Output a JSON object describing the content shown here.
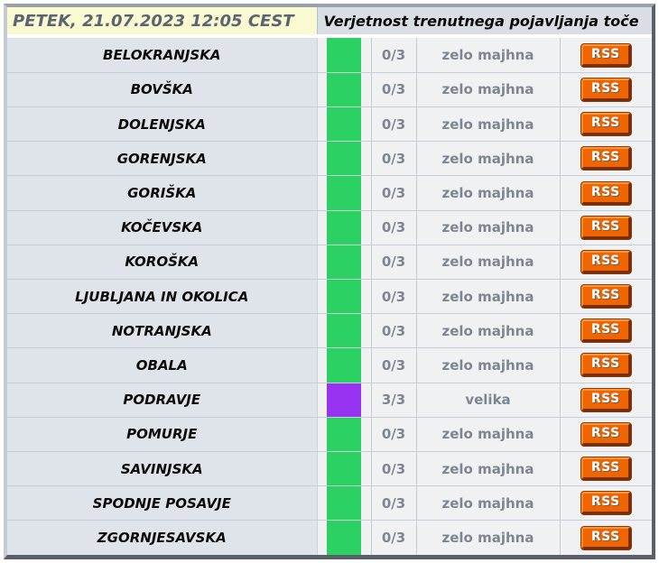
{
  "header": {
    "date": "PETEK, 21.07.2023 12:05 CEST",
    "title": "Verjetnost trenutnega pojavljanja toče"
  },
  "colors": {
    "green": "#2bd163",
    "purple": "#9833f2",
    "rss_orange": "#ef6502",
    "header_yellow": "#fafad2",
    "region_cell": "#dfe4eb"
  },
  "rss_label": "RSS",
  "rows": [
    {
      "region": "BELOKRANJSKA",
      "score": "0/3",
      "probability": "zelo majhna",
      "level": "green"
    },
    {
      "region": "BOVŠKA",
      "score": "0/3",
      "probability": "zelo majhna",
      "level": "green"
    },
    {
      "region": "DOLENJSKA",
      "score": "0/3",
      "probability": "zelo majhna",
      "level": "green"
    },
    {
      "region": "GORENJSKA",
      "score": "0/3",
      "probability": "zelo majhna",
      "level": "green"
    },
    {
      "region": "GORIŠKA",
      "score": "0/3",
      "probability": "zelo majhna",
      "level": "green"
    },
    {
      "region": "KOČEVSKA",
      "score": "0/3",
      "probability": "zelo majhna",
      "level": "green"
    },
    {
      "region": "KOROŠKA",
      "score": "0/3",
      "probability": "zelo majhna",
      "level": "green"
    },
    {
      "region": "LJUBLJANA IN OKOLICA",
      "score": "0/3",
      "probability": "zelo majhna",
      "level": "green"
    },
    {
      "region": "NOTRANJSKA",
      "score": "0/3",
      "probability": "zelo majhna",
      "level": "green"
    },
    {
      "region": "OBALA",
      "score": "0/3",
      "probability": "zelo majhna",
      "level": "green"
    },
    {
      "region": "PODRAVJE",
      "score": "3/3",
      "probability": "velika",
      "level": "purple"
    },
    {
      "region": "POMURJE",
      "score": "0/3",
      "probability": "zelo majhna",
      "level": "green"
    },
    {
      "region": "SAVINJSKA",
      "score": "0/3",
      "probability": "zelo majhna",
      "level": "green"
    },
    {
      "region": "SPODNJE POSAVJE",
      "score": "0/3",
      "probability": "zelo majhna",
      "level": "green"
    },
    {
      "region": "ZGORNJESAVSKA",
      "score": "0/3",
      "probability": "zelo majhna",
      "level": "green"
    }
  ]
}
